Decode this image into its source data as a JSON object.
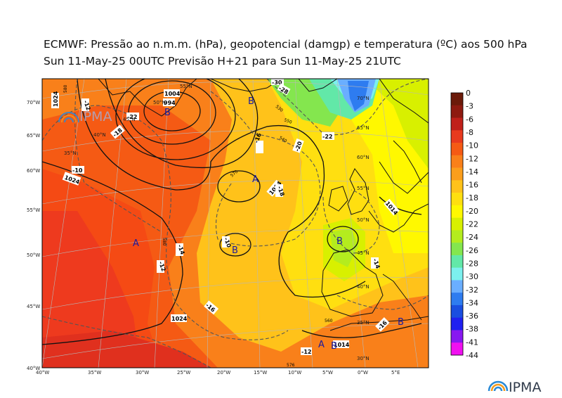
{
  "title_line1": "ECMWF:  Pressão ao n.m.m. (hPa), geopotencial (damgp) e temperatura (ºC) aos 500 hPa",
  "title_line2": "Sun 11-May-25 00UTC Previsão H+21 para Sun 11-May-25 21UTC",
  "logo_text": "IPMA",
  "colorbar": {
    "labels": [
      "0",
      "-3",
      "-6",
      "-8",
      "-10",
      "-12",
      "-14",
      "-16",
      "-18",
      "-20",
      "-22",
      "-24",
      "-26",
      "-28",
      "-30",
      "-32",
      "-34",
      "-36",
      "-38",
      "-41",
      "-44"
    ],
    "colors": [
      "#6b1a0a",
      "#8e1a10",
      "#c0201a",
      "#e83a1e",
      "#f55a14",
      "#f9801a",
      "#fb9e1c",
      "#ffc21a",
      "#ffdf10",
      "#fff800",
      "#d8f000",
      "#b4ec1e",
      "#84e64e",
      "#62e8a8",
      "#7cf0ee",
      "#6aaeff",
      "#2e7cf0",
      "#1a4ee0",
      "#2020f0",
      "#8818f0",
      "#f010f0"
    ]
  },
  "lon_labels": [
    "40°W",
    "35°W",
    "30°W",
    "25°W",
    "20°W",
    "15°W",
    "10°W",
    "5°W",
    "0°W",
    "5°E"
  ],
  "lat_labels": [
    "70°W",
    "65°W",
    "60°W",
    "55°W",
    "50°W",
    "45°W",
    "40°W"
  ],
  "grid_labels": [
    "55°N",
    "50°N",
    "45°N",
    "40°N",
    "35°N",
    "70°N",
    "65°N",
    "60°N",
    "55°N",
    "50°N",
    "45°N",
    "40°N",
    "35°N",
    "30°N"
  ],
  "isobar_labels": [
    "1024",
    "1024",
    "1024",
    "1024",
    "1004",
    "994",
    "1014",
    "1014"
  ],
  "temp_labels": [
    "-10",
    "-12",
    "-12",
    "-14",
    "-16",
    "-16",
    "-18",
    "-18",
    "-20",
    "-22",
    "-22",
    "-12",
    "-16",
    "-10",
    "-30",
    "-28",
    "-14"
  ],
  "geo_labels": [
    "580",
    "570",
    "550",
    "540",
    "530",
    "560",
    "580",
    "576"
  ],
  "pressure_centers": [
    "A",
    "A",
    "B",
    "B",
    "B",
    "B",
    "A",
    "B",
    "B"
  ]
}
